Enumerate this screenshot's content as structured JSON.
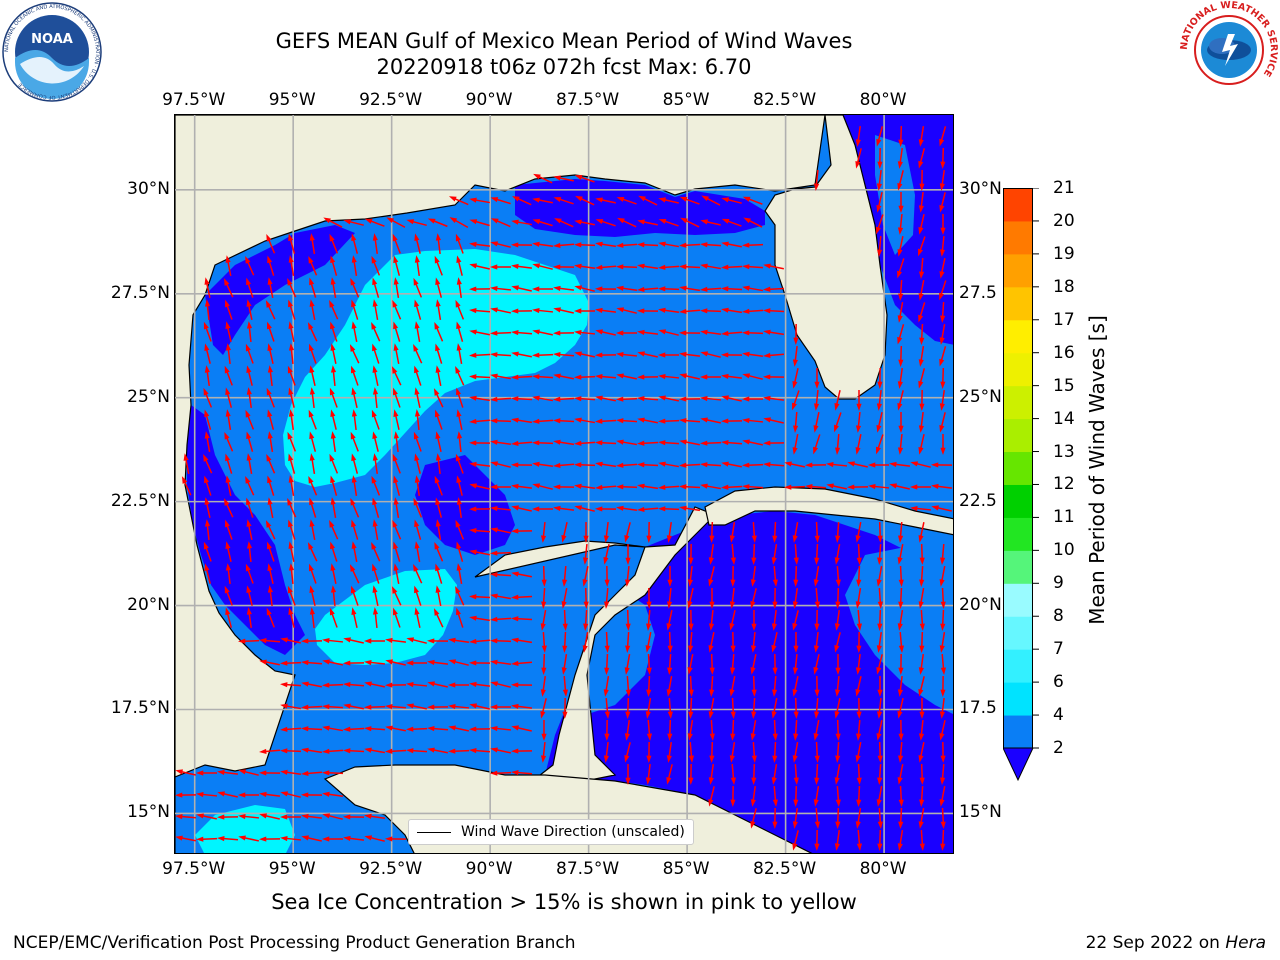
{
  "title": {
    "line1": "GEFS MEAN Gulf of Mexico Mean Period of Wind Waves",
    "line2": "20220918 t06z 072h fcst   Max: 6.70"
  },
  "axes": {
    "lon_ticks": [
      "97.5°W",
      "95°W",
      "92.5°W",
      "90°W",
      "87.5°W",
      "85°W",
      "82.5°W",
      "80°W"
    ],
    "lon_values": [
      -97.5,
      -95,
      -92.5,
      -90,
      -87.5,
      -85,
      -82.5,
      -80
    ],
    "lat_ticks_left": [
      "30°N",
      "27.5°N",
      "25°N",
      "22.5°N",
      "20°N",
      "17.5°N",
      "15°N"
    ],
    "lat_ticks_right": [
      "30°N",
      "27.5",
      "25°N",
      "22.5",
      "20°N",
      "17.5",
      "15°N"
    ],
    "lat_values": [
      30,
      27.5,
      25,
      22.5,
      20,
      17.5,
      15
    ],
    "lon_range": [
      -98,
      -78.2
    ],
    "lat_range": [
      14,
      31.8
    ],
    "grid": true
  },
  "legend": {
    "label": "Wind Wave Direction (unscaled)"
  },
  "colorbar": {
    "title": "Mean Period of Wind Waves [s]",
    "levels": [
      "2",
      "4",
      "6",
      "7",
      "8",
      "9",
      "10",
      "11",
      "12",
      "13",
      "14",
      "15",
      "16",
      "17",
      "18",
      "19",
      "20",
      "21"
    ],
    "colors": [
      "#0a7ef5",
      "#00e3ff",
      "#33f0ff",
      "#66f7ff",
      "#99fbff",
      "#55f57a",
      "#22e622",
      "#00d000",
      "#66e600",
      "#aaee00",
      "#ccf000",
      "#eef000",
      "#ffee00",
      "#ffc400",
      "#ffa000",
      "#ff7a00",
      "#ff4400",
      "#ff1500"
    ],
    "under_color": "#1a00ff",
    "extend": "min"
  },
  "colors": {
    "land": "#efefdc",
    "dark_blue": "#1a00ff",
    "mid_blue": "#0a7ef5",
    "cyan": "#00f5ff",
    "arrow": "#ff0000",
    "grid": "#b0b0b0"
  },
  "subtitle": "Sea Ice Concentration > 15% is shown in pink to yellow",
  "footer": {
    "left": "NCEP/EMC/Verification Post Processing Product Generation Branch",
    "right_prefix": "22 Sep 2022 on ",
    "right_host": "Hera"
  },
  "logos": {
    "noaa": {
      "text": "NOAA",
      "ring_text": "NATIONAL OCEANIC AND ATMOSPHERIC ADMINISTRATION · U.S. DEPARTMENT OF COMMERCE"
    },
    "nws": {
      "ring_text": "NATIONAL WEATHER SERVICE"
    }
  }
}
